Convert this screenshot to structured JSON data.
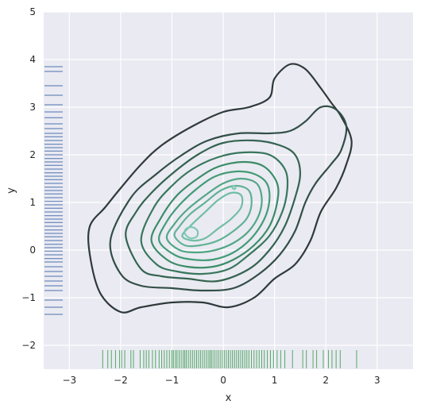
{
  "chart_data": {
    "type": "kde-contour-with-rugplots",
    "xlabel": "x",
    "ylabel": "y",
    "xlim": [
      -3.5,
      3.7
    ],
    "ylim": [
      -2.5,
      5.0
    ],
    "xticks": [
      -3,
      -2,
      -1,
      0,
      1,
      2,
      3
    ],
    "yticks": [
      -2,
      -1,
      0,
      1,
      2,
      3,
      4,
      5
    ],
    "xtick_labels": [
      "−3",
      "−2",
      "−1",
      "0",
      "1",
      "2",
      "3"
    ],
    "ytick_labels": [
      "−2",
      "−1",
      "0",
      "1",
      "2",
      "3",
      "4",
      "5"
    ],
    "grid": true,
    "legend": false,
    "background": "#eaeaf2",
    "grid_color": "#ffffff",
    "colors": {
      "x_rug": "#55a868",
      "y_rug": "#4c72b0",
      "contour_light": "#7fc9b4",
      "contour_dark": "#2f3a3a"
    },
    "x_rug_values": [
      -2.35,
      -2.25,
      -2.18,
      -2.1,
      -2.02,
      -1.98,
      -1.92,
      -1.8,
      -1.75,
      -1.62,
      -1.55,
      -1.5,
      -1.45,
      -1.38,
      -1.32,
      -1.25,
      -1.2,
      -1.15,
      -1.1,
      -1.05,
      -1.0,
      -0.97,
      -0.93,
      -0.9,
      -0.86,
      -0.82,
      -0.78,
      -0.75,
      -0.72,
      -0.68,
      -0.64,
      -0.6,
      -0.56,
      -0.52,
      -0.48,
      -0.44,
      -0.4,
      -0.36,
      -0.32,
      -0.28,
      -0.25,
      -0.22,
      -0.18,
      -0.14,
      -0.1,
      -0.06,
      -0.02,
      0.02,
      0.06,
      0.1,
      0.14,
      0.18,
      0.22,
      0.26,
      0.3,
      0.34,
      0.38,
      0.42,
      0.46,
      0.5,
      0.55,
      0.6,
      0.65,
      0.7,
      0.75,
      0.8,
      0.86,
      0.92,
      0.98,
      1.05,
      1.12,
      1.2,
      1.35,
      1.55,
      1.62,
      1.75,
      1.82,
      1.95,
      2.05,
      2.12,
      2.2,
      2.28,
      2.6
    ],
    "y_rug_values": [
      -1.35,
      -1.2,
      -1.05,
      -0.85,
      -0.75,
      -0.65,
      -0.55,
      -0.45,
      -0.35,
      -0.25,
      -0.18,
      -0.1,
      -0.02,
      0.05,
      0.12,
      0.2,
      0.28,
      0.35,
      0.42,
      0.5,
      0.58,
      0.65,
      0.72,
      0.8,
      0.88,
      0.95,
      1.02,
      1.1,
      1.18,
      1.25,
      1.32,
      1.4,
      1.48,
      1.55,
      1.62,
      1.7,
      1.78,
      1.85,
      1.92,
      2.0,
      2.08,
      2.15,
      2.22,
      2.3,
      2.38,
      2.45,
      2.55,
      2.65,
      2.78,
      2.9,
      3.05,
      3.25,
      3.45,
      3.75,
      3.85
    ],
    "contours": [
      {
        "level": 1,
        "points": [
          [
            -2.6,
            0.5
          ],
          [
            -2.6,
            -0.1
          ],
          [
            -2.4,
            -0.9
          ],
          [
            -2.0,
            -1.3
          ],
          [
            -1.6,
            -1.2
          ],
          [
            -1.0,
            -1.1
          ],
          [
            -0.4,
            -1.1
          ],
          [
            0.1,
            -1.2
          ],
          [
            0.6,
            -1.0
          ],
          [
            1.0,
            -0.6
          ],
          [
            1.4,
            -0.3
          ],
          [
            1.7,
            0.2
          ],
          [
            1.9,
            0.8
          ],
          [
            2.2,
            1.3
          ],
          [
            2.4,
            1.8
          ],
          [
            2.5,
            2.3
          ],
          [
            2.3,
            2.8
          ],
          [
            2.1,
            3.1
          ],
          [
            1.9,
            3.4
          ],
          [
            1.6,
            3.8
          ],
          [
            1.3,
            3.9
          ],
          [
            1.0,
            3.6
          ],
          [
            0.9,
            3.2
          ],
          [
            0.5,
            3.0
          ],
          [
            0.0,
            2.9
          ],
          [
            -0.6,
            2.6
          ],
          [
            -1.2,
            2.2
          ],
          [
            -1.6,
            1.8
          ],
          [
            -2.0,
            1.3
          ],
          [
            -2.3,
            0.9
          ]
        ]
      },
      {
        "level": 2,
        "points": [
          [
            -2.2,
            0.2
          ],
          [
            -2.0,
            -0.5
          ],
          [
            -1.6,
            -0.75
          ],
          [
            -1.0,
            -0.8
          ],
          [
            -0.4,
            -0.85
          ],
          [
            0.2,
            -0.8
          ],
          [
            0.7,
            -0.5
          ],
          [
            1.1,
            -0.1
          ],
          [
            1.4,
            0.4
          ],
          [
            1.6,
            1.0
          ],
          [
            1.8,
            1.4
          ],
          [
            2.1,
            1.8
          ],
          [
            2.3,
            2.1
          ],
          [
            2.4,
            2.6
          ],
          [
            2.2,
            2.95
          ],
          [
            1.9,
            3.0
          ],
          [
            1.6,
            2.7
          ],
          [
            1.3,
            2.5
          ],
          [
            0.9,
            2.45
          ],
          [
            0.3,
            2.45
          ],
          [
            -0.3,
            2.3
          ],
          [
            -0.8,
            2.0
          ],
          [
            -1.3,
            1.6
          ],
          [
            -1.8,
            1.1
          ]
        ]
      },
      {
        "level": 3,
        "points": [
          [
            -1.9,
            0.3
          ],
          [
            -1.6,
            -0.4
          ],
          [
            -1.2,
            -0.55
          ],
          [
            -0.7,
            -0.6
          ],
          [
            -0.1,
            -0.65
          ],
          [
            0.5,
            -0.4
          ],
          [
            0.9,
            0.0
          ],
          [
            1.2,
            0.5
          ],
          [
            1.4,
            1.1
          ],
          [
            1.5,
            1.6
          ],
          [
            1.4,
            2.0
          ],
          [
            1.1,
            2.2
          ],
          [
            0.6,
            2.3
          ],
          [
            0.0,
            2.25
          ],
          [
            -0.5,
            2.0
          ],
          [
            -1.0,
            1.6
          ],
          [
            -1.4,
            1.2
          ],
          [
            -1.7,
            0.8
          ]
        ]
      },
      {
        "level": 4,
        "points": [
          [
            -1.6,
            0.2
          ],
          [
            -1.3,
            -0.3
          ],
          [
            -0.9,
            -0.45
          ],
          [
            -0.4,
            -0.5
          ],
          [
            0.1,
            -0.4
          ],
          [
            0.5,
            -0.1
          ],
          [
            0.9,
            0.3
          ],
          [
            1.15,
            0.8
          ],
          [
            1.25,
            1.3
          ],
          [
            1.2,
            1.7
          ],
          [
            0.9,
            2.0
          ],
          [
            0.4,
            2.05
          ],
          [
            -0.1,
            1.95
          ],
          [
            -0.6,
            1.7
          ],
          [
            -1.0,
            1.35
          ],
          [
            -1.35,
            0.9
          ]
        ]
      },
      {
        "level": 5,
        "points": [
          [
            -1.4,
            0.2
          ],
          [
            -1.1,
            -0.2
          ],
          [
            -0.7,
            -0.35
          ],
          [
            -0.2,
            -0.35
          ],
          [
            0.2,
            -0.2
          ],
          [
            0.6,
            0.1
          ],
          [
            0.9,
            0.5
          ],
          [
            1.05,
            1.0
          ],
          [
            1.05,
            1.4
          ],
          [
            0.8,
            1.75
          ],
          [
            0.4,
            1.85
          ],
          [
            -0.1,
            1.75
          ],
          [
            -0.5,
            1.5
          ],
          [
            -0.9,
            1.15
          ],
          [
            -1.2,
            0.7
          ]
        ]
      },
      {
        "level": 6,
        "points": [
          [
            -1.25,
            0.2
          ],
          [
            -0.95,
            -0.1
          ],
          [
            -0.6,
            -0.2
          ],
          [
            -0.2,
            -0.2
          ],
          [
            0.2,
            -0.05
          ],
          [
            0.55,
            0.25
          ],
          [
            0.8,
            0.65
          ],
          [
            0.9,
            1.05
          ],
          [
            0.85,
            1.4
          ],
          [
            0.6,
            1.6
          ],
          [
            0.25,
            1.65
          ],
          [
            -0.15,
            1.55
          ],
          [
            -0.5,
            1.3
          ],
          [
            -0.85,
            0.95
          ],
          [
            -1.1,
            0.6
          ]
        ]
      },
      {
        "level": 7,
        "points": [
          [
            -1.1,
            0.25
          ],
          [
            -0.85,
            0.0
          ],
          [
            -0.5,
            -0.05
          ],
          [
            -0.15,
            0.0
          ],
          [
            0.2,
            0.15
          ],
          [
            0.5,
            0.4
          ],
          [
            0.7,
            0.75
          ],
          [
            0.75,
            1.1
          ],
          [
            0.65,
            1.4
          ],
          [
            0.35,
            1.5
          ],
          [
            0.0,
            1.4
          ],
          [
            -0.35,
            1.15
          ],
          [
            -0.7,
            0.85
          ],
          [
            -0.95,
            0.55
          ]
        ]
      },
      {
        "level": 8,
        "points": [
          [
            -0.95,
            0.3
          ],
          [
            -0.75,
            0.1
          ],
          [
            -0.45,
            0.1
          ],
          [
            -0.1,
            0.2
          ],
          [
            0.2,
            0.4
          ],
          [
            0.45,
            0.65
          ],
          [
            0.55,
            0.95
          ],
          [
            0.5,
            1.25
          ],
          [
            0.25,
            1.35
          ],
          [
            -0.05,
            1.25
          ],
          [
            -0.35,
            1.0
          ],
          [
            -0.65,
            0.75
          ],
          [
            -0.85,
            0.5
          ]
        ]
      },
      {
        "level": 9,
        "points": [
          [
            -0.8,
            0.3
          ],
          [
            -0.6,
            0.2
          ],
          [
            -0.35,
            0.25
          ],
          [
            -0.1,
            0.45
          ],
          [
            0.15,
            0.65
          ],
          [
            0.35,
            0.9
          ],
          [
            0.35,
            1.15
          ],
          [
            0.15,
            1.2
          ],
          [
            -0.1,
            1.05
          ],
          [
            -0.35,
            0.8
          ],
          [
            -0.6,
            0.55
          ]
        ]
      },
      {
        "level": 10,
        "points": [
          [
            -0.75,
            0.35
          ],
          [
            -0.65,
            0.25
          ],
          [
            -0.52,
            0.28
          ],
          [
            -0.5,
            0.4
          ],
          [
            -0.6,
            0.48
          ],
          [
            -0.72,
            0.45
          ]
        ]
      },
      {
        "level": 10,
        "points": [
          [
            0.18,
            1.3
          ],
          [
            0.22,
            1.28
          ],
          [
            0.24,
            1.32
          ],
          [
            0.2,
            1.35
          ]
        ]
      }
    ]
  }
}
